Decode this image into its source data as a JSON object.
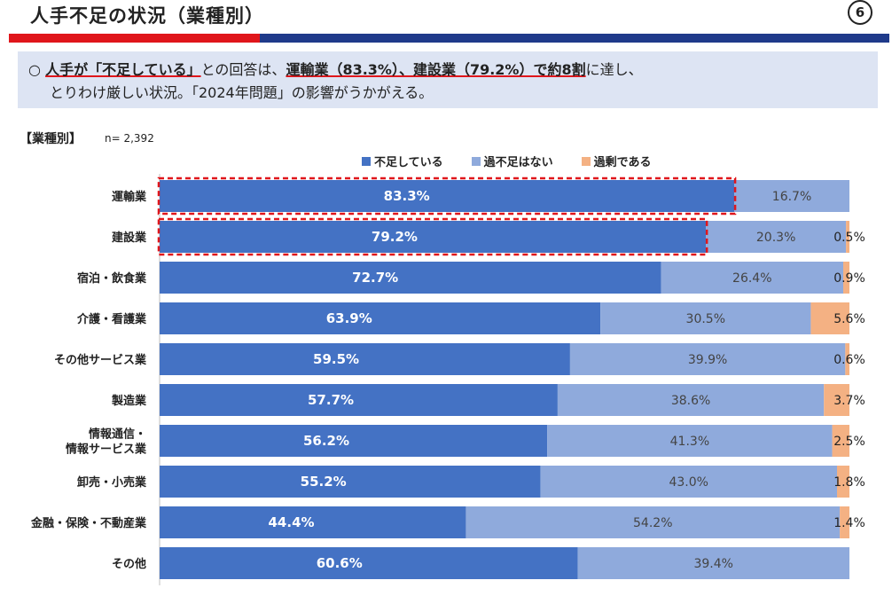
{
  "header": {
    "title": "人手不足の状況（業種別）",
    "page_number": "6"
  },
  "callout": {
    "marker": "○",
    "line1_parts": [
      {
        "text": "人手が「不足している」",
        "emph": true
      },
      {
        "text": "との回答は、",
        "emph": false
      },
      {
        "text": "運輸業（83.3%）、建設業（79.2%）で約8割",
        "emph": true
      },
      {
        "text": "に達し、",
        "emph": false
      }
    ],
    "line2": "とりわけ厳しい状況。「2024年問題」の影響がうかがえる。"
  },
  "section": {
    "label": "【業種別】",
    "n": "n= 2,392"
  },
  "colors": {
    "shortage": "#4472c4",
    "neither": "#8faadc",
    "surplus": "#f4b183",
    "highlight": "#e0161b"
  },
  "chart_data": {
    "type": "bar",
    "orientation": "horizontal",
    "stacked": "100%",
    "legend_position": "top",
    "categories": [
      "運輸業",
      "建設業",
      "宿泊・飲食業",
      "介護・看護業",
      "その他サービス業",
      "製造業",
      "情報通信・\n情報サービス業",
      "卸売・小売業",
      "金融・保険・不動産業",
      "その他"
    ],
    "series": [
      {
        "name": "不足している",
        "values": [
          83.3,
          79.2,
          72.7,
          63.9,
          59.5,
          57.7,
          56.2,
          55.2,
          44.4,
          60.6
        ]
      },
      {
        "name": "過不足はない",
        "values": [
          16.7,
          20.3,
          26.4,
          30.5,
          39.9,
          38.6,
          41.3,
          43.0,
          54.2,
          39.4
        ]
      },
      {
        "name": "過剰である",
        "values": [
          null,
          0.5,
          0.9,
          5.6,
          0.6,
          3.7,
          2.5,
          1.8,
          1.4,
          null
        ]
      }
    ],
    "unit": "%",
    "highlighted_categories": [
      "運輸業",
      "建設業"
    ]
  }
}
